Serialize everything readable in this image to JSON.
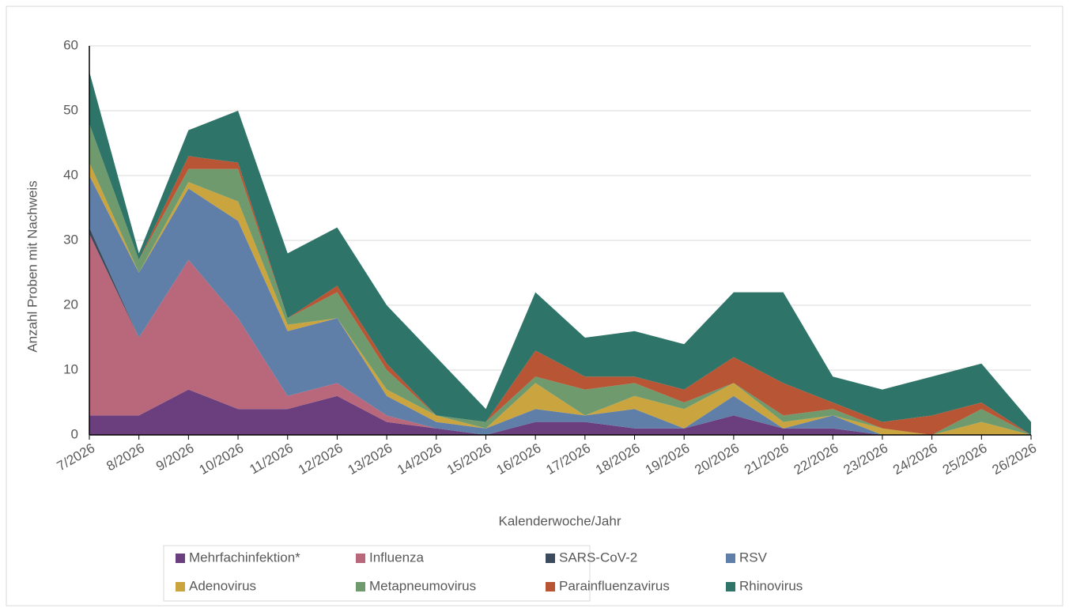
{
  "chart_data": {
    "type": "stacked-area",
    "x_label": "Kalenderwoche/Jahr",
    "y_label": "Anzahl Proben mit Nachweis",
    "categories": [
      "7/2026",
      "8/2026",
      "9/2026",
      "10/2026",
      "11/2026",
      "12/2026",
      "13/2026",
      "14/2026",
      "15/2026",
      "16/2026",
      "17/2026",
      "18/2026",
      "19/2026",
      "20/2026",
      "21/2026",
      "22/2026",
      "23/2026",
      "24/2026",
      "25/2026",
      "26/2026"
    ],
    "series": [
      {
        "name": "Mehrfachinfektion*",
        "color": "#6b3f7e",
        "values": [
          3,
          3,
          7,
          4,
          4,
          6,
          2,
          1,
          0,
          2,
          2,
          1,
          1,
          3,
          1,
          1,
          0,
          0,
          0,
          0
        ]
      },
      {
        "name": "Influenza",
        "color": "#b8687a",
        "values": [
          28,
          12,
          20,
          14,
          2,
          2,
          1,
          0,
          0,
          0,
          0,
          0,
          0,
          0,
          0,
          0,
          0,
          0,
          0,
          0
        ]
      },
      {
        "name": "SARS-CoV-2",
        "color": "#3b4a5c",
        "values": [
          1,
          0,
          0,
          0,
          0,
          0,
          0,
          0,
          0,
          0,
          0,
          0,
          0,
          0,
          0,
          0,
          0,
          0,
          0,
          0
        ]
      },
      {
        "name": "RSV",
        "color": "#5f7fa8",
        "values": [
          8,
          10,
          11,
          15,
          10,
          10,
          3,
          1,
          1,
          2,
          1,
          3,
          0,
          3,
          0,
          2,
          0,
          0,
          0,
          0
        ]
      },
      {
        "name": "Adenovirus",
        "color": "#c9a43f",
        "values": [
          2,
          0,
          1,
          3,
          1,
          0,
          1,
          1,
          0,
          4,
          0,
          2,
          3,
          2,
          1,
          0,
          1,
          0,
          2,
          0
        ]
      },
      {
        "name": "Metapneumovirus",
        "color": "#6f9a6e",
        "values": [
          6,
          2,
          2,
          5,
          1,
          4,
          3,
          0,
          1,
          1,
          4,
          2,
          1,
          0,
          1,
          1,
          0,
          0,
          2,
          0
        ]
      },
      {
        "name": "Parainfluenzavirus",
        "color": "#b85534",
        "values": [
          0,
          0,
          2,
          1,
          0,
          1,
          1,
          0,
          0,
          4,
          2,
          1,
          2,
          4,
          5,
          1,
          1,
          3,
          1,
          0
        ]
      },
      {
        "name": "Rhinovirus",
        "color": "#2e7468",
        "values": [
          8,
          1,
          4,
          8,
          10,
          9,
          9,
          9,
          2,
          9,
          6,
          7,
          7,
          10,
          14,
          4,
          5,
          6,
          6,
          2
        ]
      }
    ],
    "ylim": [
      0,
      60
    ],
    "yticks": [
      0,
      10,
      20,
      30,
      40,
      50,
      60
    ],
    "grid": true
  }
}
